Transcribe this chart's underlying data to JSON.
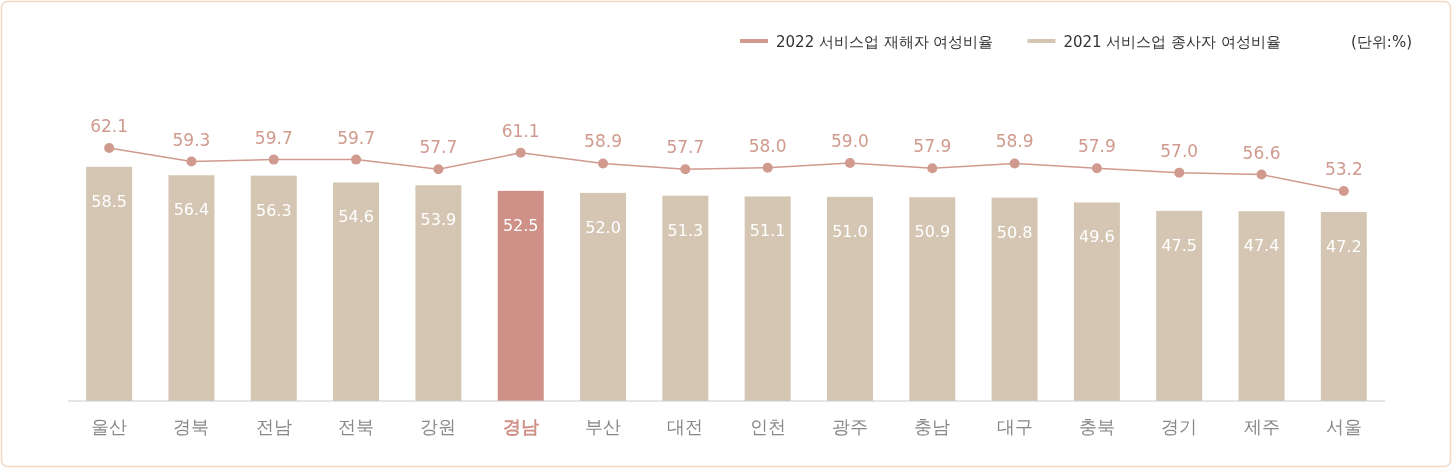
{
  "chart_data": {
    "type": "bar",
    "categories": [
      "울산",
      "경북",
      "전남",
      "전북",
      "강원",
      "경남",
      "부산",
      "대전",
      "인천",
      "광주",
      "충남",
      "대구",
      "충북",
      "경기",
      "제주",
      "서울"
    ],
    "series": [
      {
        "name": "2021 서비스업 종사자 여성비율",
        "color": "#d4c6b2",
        "colors": [
          "#d4c6b2",
          "#d4c6b2",
          "#d4c6b2",
          "#d4c6b2",
          "#d4c6b2",
          "#cf9087",
          "#d4c6b2",
          "#d4c6b2",
          "#d4c6b2",
          "#d4c6b2",
          "#d4c6b2",
          "#d4c6b2",
          "#d4c6b2",
          "#d4c6b2",
          "#d4c6b2",
          "#d4c6b2"
        ],
        "values": [
          58.5,
          56.4,
          56.3,
          54.6,
          53.9,
          52.5,
          52.0,
          51.3,
          51.1,
          51.0,
          50.9,
          50.8,
          49.6,
          47.5,
          47.4,
          47.2
        ],
        "value_labels": [
          "58.5",
          "56.4",
          "56.3",
          "54.6",
          "53.9",
          "52.5",
          "52.0",
          "51.3",
          "51.1",
          "51.0",
          "50.9",
          "50.8",
          "49.6",
          "47.5",
          "47.4",
          "47.2"
        ]
      },
      {
        "type": "line",
        "axis": "y2",
        "name": "2022 서비스업 재해자 여성비율",
        "color": "#d09a8e",
        "values": [
          62.1,
          59.3,
          59.7,
          59.7,
          57.7,
          61.1,
          58.9,
          57.7,
          58.0,
          59.0,
          57.9,
          58.9,
          57.9,
          57.0,
          56.6,
          53.2
        ],
        "value_labels": [
          "62.1",
          "59.3",
          "59.7",
          "59.7",
          "57.7",
          "61.1",
          "58.9",
          "57.7",
          "58.0",
          "59.0",
          "57.9",
          "58.9",
          "57.9",
          "57.0",
          "56.6",
          "53.2"
        ]
      }
    ],
    "marker": "circle",
    "legend": "top right",
    "tick_labels": "x",
    "grid": false,
    "annotations": [
      "(단위:%)"
    ]
  }
}
